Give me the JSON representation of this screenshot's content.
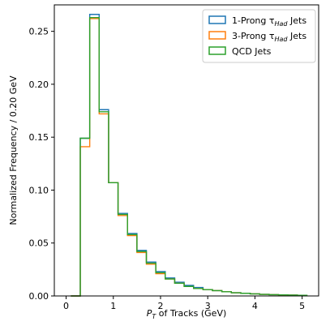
{
  "chart_data": {
    "type": "histogram-step",
    "xlabel_parts": [
      "P",
      "T",
      " of Tracks (GeV)"
    ],
    "ylabel": "Normalized Frequency / 0.20 GeV",
    "xlim": [
      -0.25,
      5.35
    ],
    "ylim": [
      0,
      0.275
    ],
    "xticks": [
      0,
      1,
      2,
      3,
      4,
      5
    ],
    "yticks": [
      0.0,
      0.05,
      0.1,
      0.15,
      0.2,
      0.25
    ],
    "ytick_labels": [
      "0.00",
      "0.05",
      "0.10",
      "0.15",
      "0.20",
      "0.25"
    ],
    "bin_edges": [
      0.1,
      0.3,
      0.5,
      0.7,
      0.9,
      1.1,
      1.3,
      1.5,
      1.7,
      1.9,
      2.1,
      2.3,
      2.5,
      2.7,
      2.9,
      3.1,
      3.3,
      3.5,
      3.7,
      3.9,
      4.1,
      4.3,
      4.5,
      4.7,
      4.9,
      5.1
    ],
    "legend_position": "top-right",
    "grid": false,
    "series": [
      {
        "name_parts": [
          "1-Prong τ",
          "Had",
          " Jets"
        ],
        "color": "#1f77b4",
        "values": [
          0.0,
          0.149,
          0.266,
          0.176,
          0.107,
          0.078,
          0.059,
          0.043,
          0.032,
          0.023,
          0.017,
          0.013,
          0.01,
          0.008,
          0.006,
          0.005,
          0.004,
          0.003,
          0.0025,
          0.002,
          0.0015,
          0.0012,
          0.001,
          0.0008,
          0.0006
        ]
      },
      {
        "name_parts": [
          "3-Prong τ",
          "Had",
          " Jets"
        ],
        "color": "#ff7f0e",
        "values": [
          0.0,
          0.141,
          0.262,
          0.172,
          0.107,
          0.076,
          0.057,
          0.041,
          0.03,
          0.021,
          0.016,
          0.012,
          0.009,
          0.007,
          0.006,
          0.005,
          0.004,
          0.003,
          0.0025,
          0.002,
          0.0015,
          0.0012,
          0.001,
          0.0008,
          0.0006
        ]
      },
      {
        "name_parts": [
          "QCD Jets"
        ],
        "color": "#2ca02c",
        "values": [
          0.0,
          0.149,
          0.263,
          0.174,
          0.107,
          0.077,
          0.058,
          0.042,
          0.031,
          0.022,
          0.016,
          0.012,
          0.009,
          0.007,
          0.006,
          0.005,
          0.004,
          0.003,
          0.0025,
          0.002,
          0.0015,
          0.0012,
          0.001,
          0.0008,
          0.0006
        ]
      }
    ]
  }
}
